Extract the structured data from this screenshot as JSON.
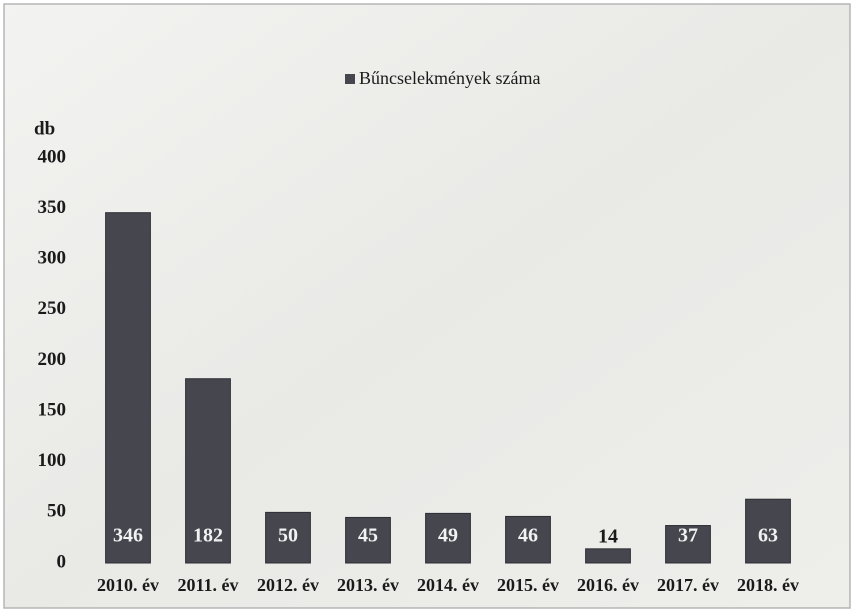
{
  "chart_data": {
    "type": "bar",
    "legend": "Bűncselekmények száma",
    "y_label": "db",
    "categories": [
      "2010. év",
      "2011. év",
      "2012. év",
      "2013. év",
      "2014. év",
      "2015. év",
      "2016. év",
      "2017. év",
      "2018. év"
    ],
    "values": [
      346,
      182,
      50,
      45,
      49,
      46,
      14,
      37,
      63
    ],
    "color": "#45464e",
    "ylim": [
      0,
      400
    ],
    "yticks": [
      0,
      50,
      100,
      150,
      200,
      250,
      300,
      350,
      400
    ],
    "grid": false,
    "legend_position": "top"
  }
}
